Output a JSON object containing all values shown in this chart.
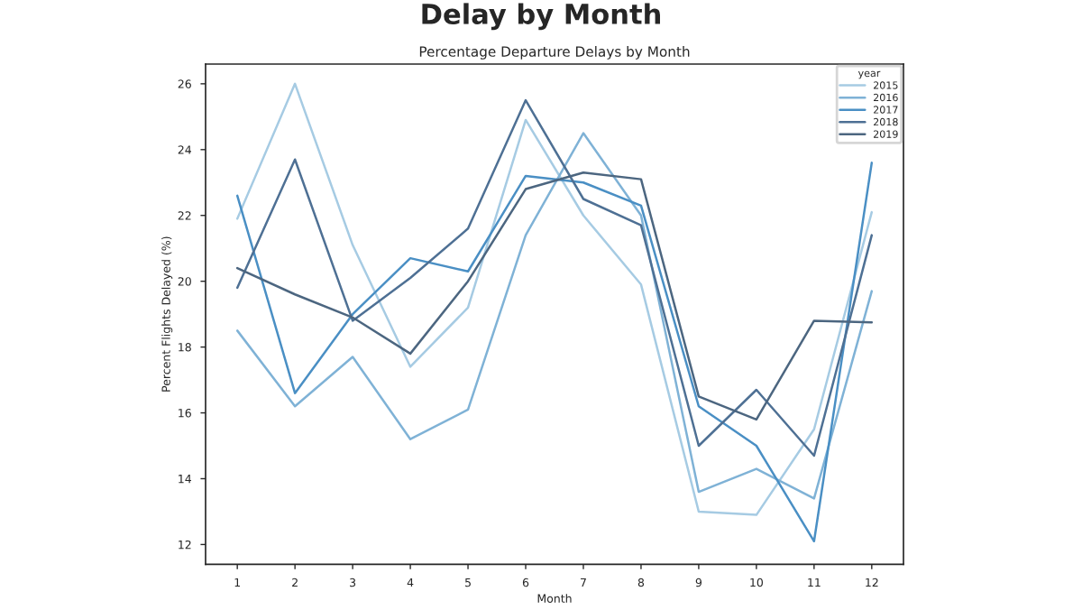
{
  "chart_data": {
    "type": "line",
    "title": "Delay by Month",
    "subtitle": "Percentage Departure Delays by Month",
    "xlabel": "Month",
    "ylabel": "Percent Flights Delayed (%)",
    "legend_title": "year",
    "legend": "top right",
    "grid": false,
    "x": [
      1,
      2,
      3,
      4,
      5,
      6,
      7,
      8,
      9,
      10,
      11,
      12
    ],
    "xlim": [
      0.45,
      12.55
    ],
    "xticks": [
      1,
      2,
      3,
      4,
      5,
      6,
      7,
      8,
      9,
      10,
      11,
      12
    ],
    "ylim": [
      11.4,
      26.6
    ],
    "yticks": [
      12,
      14,
      16,
      18,
      20,
      22,
      24,
      26
    ],
    "series": [
      {
        "name": "2015",
        "color": "#a6cbe3",
        "values": [
          21.9,
          26.0,
          21.1,
          17.4,
          19.2,
          24.9,
          22.0,
          19.9,
          13.0,
          12.9,
          15.5,
          22.1
        ]
      },
      {
        "name": "2016",
        "color": "#7fb2d6",
        "values": [
          18.5,
          16.2,
          17.7,
          15.2,
          16.1,
          21.4,
          24.5,
          22.0,
          13.6,
          14.3,
          13.4,
          19.7
        ]
      },
      {
        "name": "2017",
        "color": "#4a8fc4",
        "values": [
          22.6,
          16.6,
          19.0,
          20.7,
          20.3,
          23.2,
          23.0,
          22.3,
          16.2,
          15.0,
          12.1,
          23.6
        ]
      },
      {
        "name": "2018",
        "color": "#4e7094",
        "values": [
          19.8,
          23.7,
          18.8,
          20.1,
          21.6,
          25.5,
          22.5,
          21.7,
          15.0,
          16.7,
          14.7,
          21.4
        ]
      },
      {
        "name": "2019",
        "color": "#4c6680",
        "values": [
          20.4,
          19.6,
          18.9,
          17.8,
          20.0,
          22.8,
          23.3,
          23.1,
          16.5,
          15.8,
          18.8,
          18.75
        ]
      }
    ]
  }
}
